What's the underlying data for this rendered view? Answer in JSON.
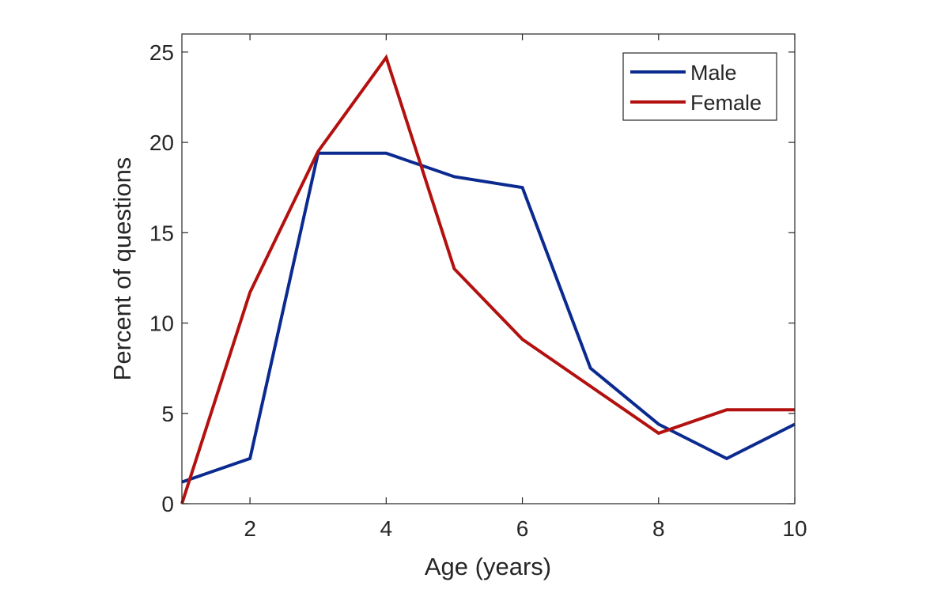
{
  "chart_data": {
    "type": "line",
    "title": "",
    "xlabel": "Age (years)",
    "ylabel": "Percent of questions",
    "xlim": [
      1,
      10
    ],
    "ylim": [
      0,
      26
    ],
    "xticks": [
      2,
      4,
      6,
      8,
      10
    ],
    "yticks": [
      0,
      5,
      10,
      15,
      20,
      25
    ],
    "grid": false,
    "legend_position": "top-right",
    "x": [
      1,
      2,
      3,
      4,
      5,
      6,
      7,
      8,
      9,
      10
    ],
    "series": [
      {
        "name": "Male",
        "color": "#0b2a8f",
        "values": [
          1.2,
          2.5,
          19.4,
          19.4,
          18.1,
          17.5,
          7.5,
          4.4,
          2.5,
          4.4
        ]
      },
      {
        "name": "Female",
        "color": "#b3110f",
        "values": [
          0.0,
          11.7,
          19.5,
          24.7,
          13.0,
          9.1,
          6.5,
          3.9,
          5.2,
          5.2
        ]
      }
    ]
  }
}
